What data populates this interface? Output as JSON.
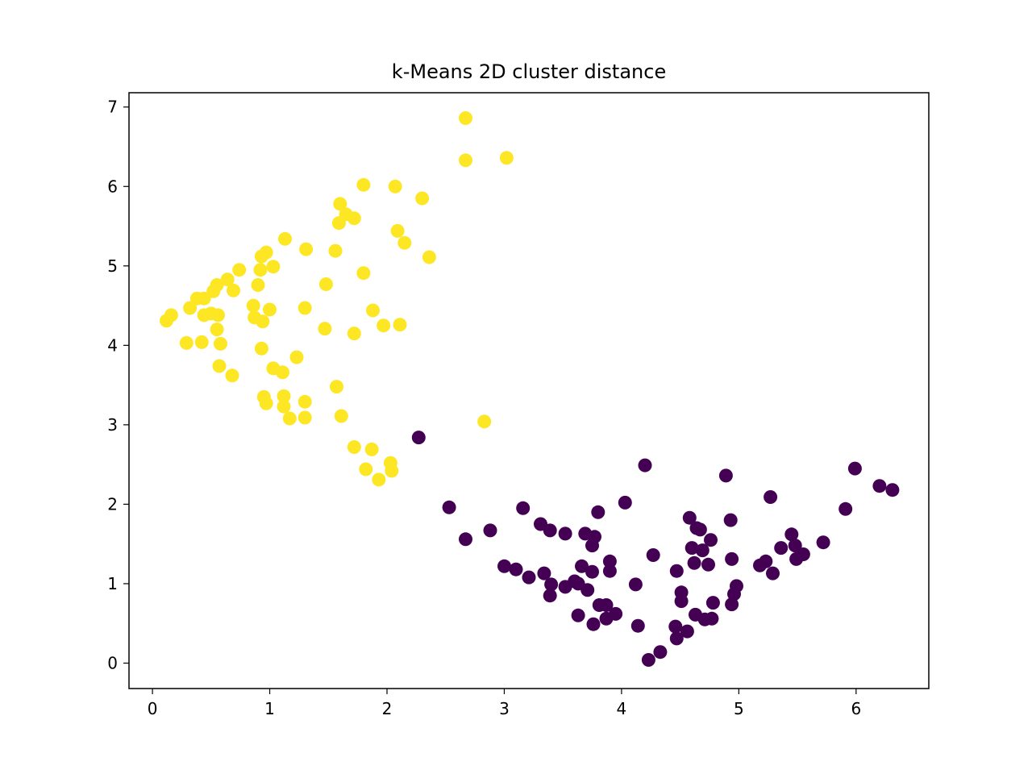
{
  "chart_data": {
    "type": "scatter",
    "title": "k-Means 2D cluster distance",
    "xlabel": "",
    "ylabel": "",
    "xlim": [
      -0.2,
      6.62
    ],
    "ylim": [
      -0.32,
      7.18
    ],
    "xticks": [
      0,
      1,
      2,
      3,
      4,
      5,
      6
    ],
    "yticks": [
      0,
      1,
      2,
      3,
      4,
      5,
      6,
      7
    ],
    "grid": false,
    "legend": "none",
    "colors": {
      "cluster_0": "#440154",
      "cluster_1": "#fde725"
    },
    "series": [
      {
        "cluster": 1,
        "color": "#fde725",
        "points": [
          [
            2.67,
            6.86
          ],
          [
            2.67,
            6.33
          ],
          [
            3.02,
            6.36
          ],
          [
            1.8,
            6.02
          ],
          [
            2.07,
            6.0
          ],
          [
            2.3,
            5.85
          ],
          [
            1.6,
            5.78
          ],
          [
            1.65,
            5.65
          ],
          [
            1.72,
            5.6
          ],
          [
            1.59,
            5.54
          ],
          [
            2.09,
            5.44
          ],
          [
            2.15,
            5.29
          ],
          [
            1.13,
            5.34
          ],
          [
            1.31,
            5.21
          ],
          [
            1.56,
            5.19
          ],
          [
            2.36,
            5.11
          ],
          [
            0.97,
            5.17
          ],
          [
            0.93,
            5.12
          ],
          [
            1.03,
            4.99
          ],
          [
            0.92,
            4.95
          ],
          [
            0.74,
            4.95
          ],
          [
            1.8,
            4.91
          ],
          [
            0.64,
            4.83
          ],
          [
            0.55,
            4.76
          ],
          [
            0.9,
            4.76
          ],
          [
            1.48,
            4.77
          ],
          [
            0.52,
            4.68
          ],
          [
            0.69,
            4.69
          ],
          [
            0.38,
            4.59
          ],
          [
            0.44,
            4.59
          ],
          [
            0.32,
            4.47
          ],
          [
            0.86,
            4.5
          ],
          [
            1.3,
            4.47
          ],
          [
            1.0,
            4.45
          ],
          [
            1.88,
            4.44
          ],
          [
            0.44,
            4.38
          ],
          [
            0.5,
            4.4
          ],
          [
            0.56,
            4.38
          ],
          [
            0.16,
            4.38
          ],
          [
            0.87,
            4.35
          ],
          [
            0.94,
            4.3
          ],
          [
            0.12,
            4.31
          ],
          [
            1.97,
            4.25
          ],
          [
            2.11,
            4.26
          ],
          [
            0.55,
            4.2
          ],
          [
            1.47,
            4.21
          ],
          [
            1.72,
            4.15
          ],
          [
            0.29,
            4.03
          ],
          [
            0.42,
            4.04
          ],
          [
            0.58,
            4.02
          ],
          [
            0.93,
            3.96
          ],
          [
            1.23,
            3.85
          ],
          [
            0.57,
            3.74
          ],
          [
            1.03,
            3.71
          ],
          [
            1.11,
            3.66
          ],
          [
            0.68,
            3.62
          ],
          [
            1.57,
            3.48
          ],
          [
            0.95,
            3.35
          ],
          [
            1.12,
            3.36
          ],
          [
            0.97,
            3.27
          ],
          [
            1.12,
            3.23
          ],
          [
            1.3,
            3.29
          ],
          [
            1.61,
            3.11
          ],
          [
            1.3,
            3.09
          ],
          [
            1.17,
            3.08
          ],
          [
            2.83,
            3.04
          ],
          [
            1.72,
            2.72
          ],
          [
            1.87,
            2.69
          ],
          [
            2.03,
            2.52
          ],
          [
            1.82,
            2.44
          ],
          [
            2.04,
            2.42
          ],
          [
            1.93,
            2.31
          ]
        ]
      },
      {
        "cluster": 0,
        "color": "#440154",
        "points": [
          [
            2.27,
            2.84
          ],
          [
            4.2,
            2.49
          ],
          [
            5.99,
            2.45
          ],
          [
            4.89,
            2.36
          ],
          [
            6.2,
            2.23
          ],
          [
            6.31,
            2.18
          ],
          [
            5.27,
            2.09
          ],
          [
            4.03,
            2.02
          ],
          [
            2.53,
            1.96
          ],
          [
            3.16,
            1.95
          ],
          [
            5.91,
            1.94
          ],
          [
            3.8,
            1.9
          ],
          [
            4.58,
            1.83
          ],
          [
            4.93,
            1.8
          ],
          [
            3.31,
            1.75
          ],
          [
            3.39,
            1.67
          ],
          [
            2.88,
            1.67
          ],
          [
            4.64,
            1.7
          ],
          [
            4.67,
            1.68
          ],
          [
            3.52,
            1.63
          ],
          [
            3.69,
            1.63
          ],
          [
            3.77,
            1.59
          ],
          [
            5.45,
            1.62
          ],
          [
            2.67,
            1.56
          ],
          [
            4.76,
            1.55
          ],
          [
            5.72,
            1.52
          ],
          [
            3.75,
            1.48
          ],
          [
            5.48,
            1.48
          ],
          [
            4.6,
            1.45
          ],
          [
            5.36,
            1.45
          ],
          [
            4.69,
            1.42
          ],
          [
            5.55,
            1.37
          ],
          [
            4.27,
            1.36
          ],
          [
            5.49,
            1.31
          ],
          [
            4.94,
            1.31
          ],
          [
            3.9,
            1.28
          ],
          [
            5.23,
            1.28
          ],
          [
            4.62,
            1.26
          ],
          [
            4.74,
            1.24
          ],
          [
            5.18,
            1.23
          ],
          [
            3.0,
            1.22
          ],
          [
            3.66,
            1.22
          ],
          [
            3.1,
            1.18
          ],
          [
            3.75,
            1.15
          ],
          [
            3.9,
            1.16
          ],
          [
            4.47,
            1.16
          ],
          [
            5.29,
            1.13
          ],
          [
            3.34,
            1.13
          ],
          [
            3.21,
            1.08
          ],
          [
            3.6,
            1.03
          ],
          [
            3.63,
            1.0
          ],
          [
            4.12,
            0.99
          ],
          [
            3.4,
            0.99
          ],
          [
            3.52,
            0.96
          ],
          [
            4.98,
            0.97
          ],
          [
            3.71,
            0.92
          ],
          [
            4.51,
            0.89
          ],
          [
            3.39,
            0.85
          ],
          [
            4.96,
            0.87
          ],
          [
            4.51,
            0.78
          ],
          [
            4.78,
            0.76
          ],
          [
            4.94,
            0.74
          ],
          [
            3.81,
            0.73
          ],
          [
            3.87,
            0.73
          ],
          [
            3.95,
            0.62
          ],
          [
            3.63,
            0.6
          ],
          [
            4.63,
            0.61
          ],
          [
            3.87,
            0.56
          ],
          [
            4.77,
            0.56
          ],
          [
            4.71,
            0.55
          ],
          [
            3.76,
            0.49
          ],
          [
            4.14,
            0.47
          ],
          [
            4.46,
            0.46
          ],
          [
            4.56,
            0.4
          ],
          [
            4.47,
            0.31
          ],
          [
            4.33,
            0.14
          ],
          [
            4.23,
            0.04
          ]
        ]
      }
    ]
  }
}
